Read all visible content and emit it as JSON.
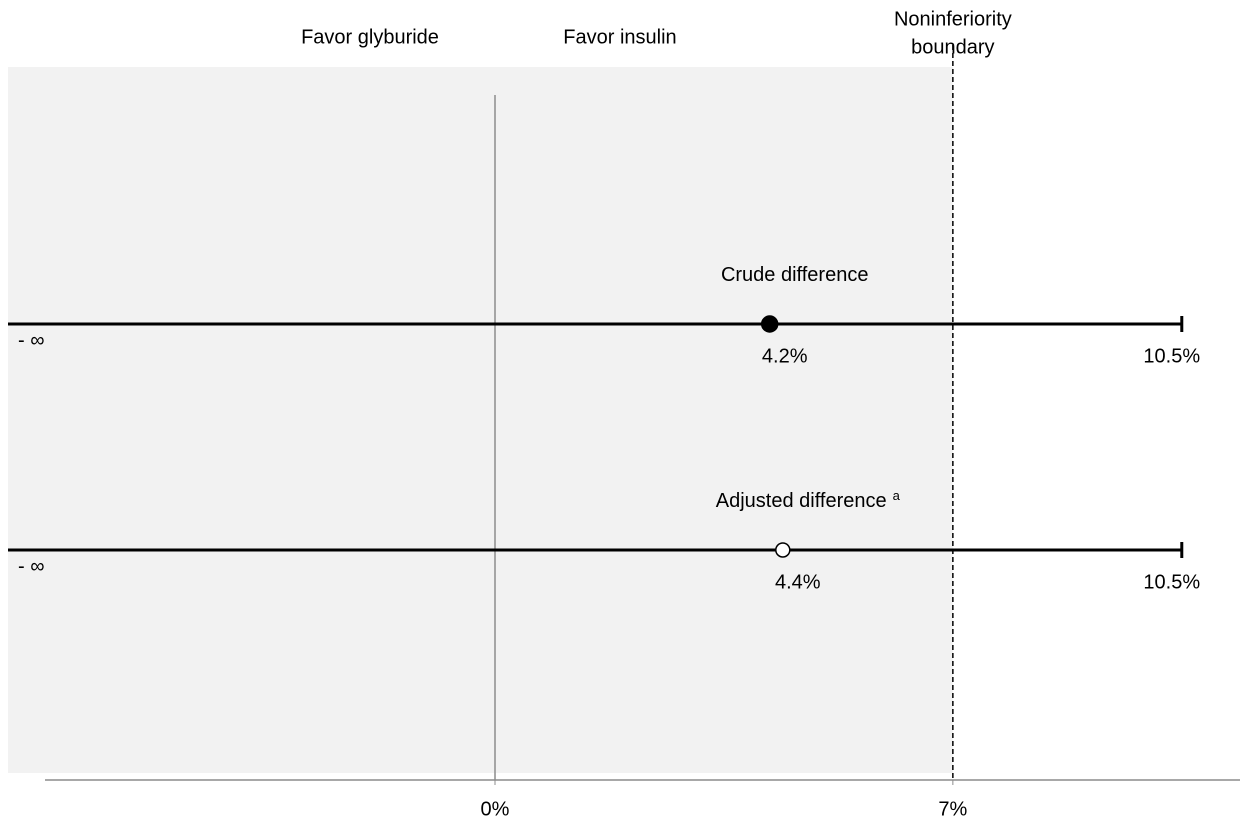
{
  "chart_data": {
    "type": "forest",
    "annotations": {
      "left": "Favor glyburide",
      "right": "Favor insulin"
    },
    "boundary": {
      "value": 7,
      "label_lines": [
        "Noninferiority",
        "boundary"
      ]
    },
    "series": [
      {
        "name": "Crude difference",
        "estimate": 4.2,
        "estimate_label": "4.2%",
        "upper": 10.5,
        "upper_label": "10.5%",
        "lower_label": "- ∞",
        "marker": "filled",
        "color": "#000000"
      },
      {
        "name": "Adjusted difference",
        "superscript": "a",
        "estimate": 4.4,
        "estimate_label": "4.4%",
        "upper": 10.5,
        "upper_label": "10.5%",
        "lower_label": "- ∞",
        "marker": "open",
        "color": "#000000"
      }
    ],
    "xlim": [
      -6.88,
      11.39
    ],
    "xticks": [
      {
        "value": 0,
        "label": "0%"
      },
      {
        "value": 7,
        "label": "7%"
      }
    ],
    "reference_line": 0,
    "background": "#f2f2f2"
  }
}
